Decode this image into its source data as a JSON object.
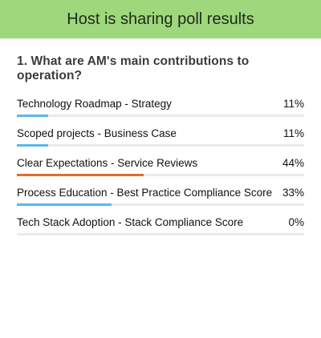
{
  "banner": {
    "title": "Host is sharing poll results",
    "color": "#9ed77c"
  },
  "question": {
    "text": "1. What are AM's main contributions to operation?"
  },
  "colors": {
    "bar_default": "#5bb8ec",
    "bar_leader": "#e86a2a",
    "track": "#eaeaea"
  },
  "options": [
    {
      "label": "Technology Roadmap - Strategy",
      "percent_text": "11%",
      "percent": 11,
      "leader": false
    },
    {
      "label": "Scoped projects - Business Case",
      "percent_text": "11%",
      "percent": 11,
      "leader": false
    },
    {
      "label": "Clear Expectations - Service Reviews",
      "percent_text": "44%",
      "percent": 44,
      "leader": true
    },
    {
      "label": "Process Education - Best Practice Compliance Score",
      "percent_text": "33%",
      "percent": 33,
      "leader": false
    },
    {
      "label": "Tech Stack Adoption - Stack Compliance Score",
      "percent_text": "0%",
      "percent": 0,
      "leader": false
    }
  ]
}
